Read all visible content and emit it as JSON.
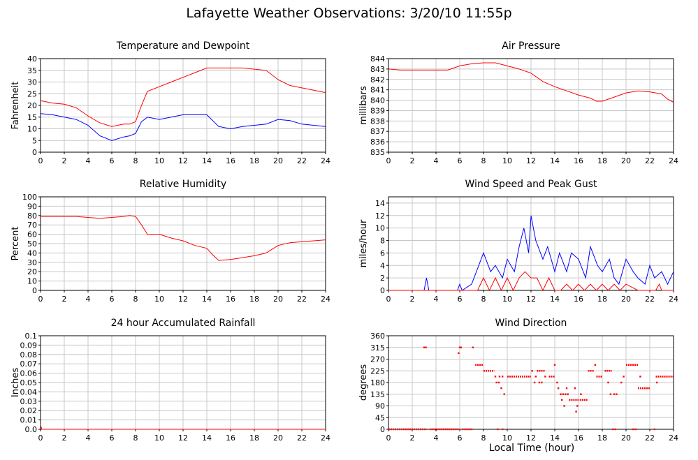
{
  "title": "Lafayette Weather Observations: 3/20/10 11:55p",
  "xlabel": "Local Time (hour)",
  "chart_data": [
    {
      "type": "line",
      "title": "Temperature and Dewpoint",
      "ylabel": "Fahrenheit",
      "xlim": [
        0,
        24
      ],
      "ylim": [
        0,
        40
      ],
      "xticks": [
        0,
        2,
        4,
        6,
        8,
        10,
        12,
        14,
        16,
        18,
        20,
        22,
        24
      ],
      "yticks": [
        0,
        5,
        10,
        15,
        20,
        25,
        30,
        35,
        40
      ],
      "grid": true,
      "series": [
        {
          "color": "#ff0000",
          "x": [
            0,
            1,
            2,
            3,
            4,
            5,
            6,
            7,
            7.5,
            8,
            8.5,
            9,
            10,
            11,
            12,
            13,
            14,
            15,
            16,
            17,
            18,
            19,
            20,
            21,
            22,
            23,
            24
          ],
          "y": [
            22,
            21,
            20.5,
            19,
            15.5,
            12.5,
            11,
            12,
            12,
            13,
            20,
            26,
            28,
            30,
            32,
            34,
            36,
            36,
            36,
            36,
            35.5,
            35,
            31,
            28.5,
            27.5,
            26.5,
            25.5
          ]
        },
        {
          "color": "#0000ff",
          "x": [
            0,
            1,
            2,
            3,
            4,
            5,
            6,
            7,
            7.5,
            8,
            8.5,
            9,
            10,
            11,
            12,
            13,
            14,
            15,
            16,
            17,
            18,
            19,
            20,
            21,
            22,
            23,
            24
          ],
          "y": [
            16.5,
            16,
            15,
            14,
            11.5,
            7,
            5,
            6.5,
            7,
            8,
            13,
            15,
            14,
            15,
            16,
            16,
            16,
            11,
            10,
            11,
            11.5,
            12,
            14,
            13.5,
            12,
            11.5,
            11
          ]
        }
      ]
    },
    {
      "type": "line",
      "title": "Air Pressure",
      "ylabel": "millibars",
      "xlim": [
        0,
        24
      ],
      "ylim": [
        835,
        844
      ],
      "xticks": [
        0,
        2,
        4,
        6,
        8,
        10,
        12,
        14,
        16,
        18,
        20,
        22,
        24
      ],
      "yticks": [
        835,
        836,
        837,
        838,
        839,
        840,
        841,
        842,
        843,
        844
      ],
      "grid": true,
      "series": [
        {
          "color": "#ff0000",
          "x": [
            0,
            1,
            2,
            3,
            4,
            5,
            6,
            7,
            8,
            9,
            10,
            11,
            12,
            13,
            14,
            15,
            16,
            17,
            17.5,
            18,
            19,
            20,
            21,
            22,
            23,
            23.5,
            24
          ],
          "y": [
            843,
            842.9,
            842.9,
            842.9,
            842.9,
            842.9,
            843.3,
            843.5,
            843.6,
            843.6,
            843.3,
            843,
            842.6,
            841.8,
            841.3,
            840.9,
            840.5,
            840.2,
            839.9,
            839.9,
            840.3,
            840.7,
            840.9,
            840.8,
            840.6,
            840.1,
            839.8
          ]
        }
      ]
    },
    {
      "type": "line",
      "title": "Relative Humidity",
      "ylabel": "Percent",
      "xlim": [
        0,
        24
      ],
      "ylim": [
        0,
        100
      ],
      "xticks": [
        0,
        2,
        4,
        6,
        8,
        10,
        12,
        14,
        16,
        18,
        20,
        22,
        24
      ],
      "yticks": [
        0,
        10,
        20,
        30,
        40,
        50,
        60,
        70,
        80,
        90,
        100
      ],
      "grid": true,
      "series": [
        {
          "color": "#ff0000",
          "x": [
            0,
            1,
            2,
            3,
            4,
            5,
            6,
            7,
            7.5,
            8,
            8.5,
            9,
            10,
            11,
            12,
            13,
            14,
            14.5,
            15,
            16,
            17,
            18,
            19,
            20,
            21,
            22,
            23,
            24
          ],
          "y": [
            79,
            79,
            79,
            79,
            78,
            77,
            78,
            79,
            80,
            79,
            70,
            60,
            60,
            56,
            53,
            48,
            45,
            38,
            32,
            33,
            35,
            37,
            40,
            48,
            51,
            52,
            53,
            54
          ]
        }
      ]
    },
    {
      "type": "line",
      "title": "Wind Speed and Peak Gust",
      "ylabel": "miles/hour",
      "xlim": [
        0,
        24
      ],
      "ylim": [
        0,
        15
      ],
      "xticks": [
        0,
        2,
        4,
        6,
        8,
        10,
        12,
        14,
        16,
        18,
        20,
        22,
        24
      ],
      "yticks": [
        0,
        2,
        4,
        6,
        8,
        10,
        12,
        14
      ],
      "grid": true,
      "series": [
        {
          "color": "#0000ff",
          "x": [
            0,
            3,
            3.2,
            3.4,
            5.8,
            6,
            6.2,
            7,
            7.4,
            8,
            8.6,
            9,
            9.6,
            10,
            10.6,
            11,
            11.4,
            11.8,
            12,
            12.4,
            13,
            13.4,
            14,
            14.4,
            15,
            15.4,
            16,
            16.6,
            17,
            17.6,
            18,
            18.6,
            19,
            19.4,
            20,
            20.6,
            21,
            21.6,
            22,
            22.4,
            23,
            23.5,
            24
          ],
          "y": [
            0,
            0,
            2,
            0,
            0,
            1,
            0,
            1,
            3,
            6,
            3,
            4,
            2,
            5,
            3,
            7,
            10,
            6,
            12,
            8,
            5,
            7,
            3,
            6,
            3,
            6,
            5,
            2,
            7,
            4,
            3,
            5,
            2,
            1,
            5,
            3,
            2,
            1,
            4,
            2,
            3,
            1,
            3
          ]
        },
        {
          "color": "#ff0000",
          "x": [
            0,
            7.5,
            8,
            8.5,
            9,
            9.5,
            10,
            10.5,
            11,
            11.5,
            12,
            12.5,
            13,
            13.5,
            14,
            14.5,
            15,
            15.5,
            16,
            16.5,
            17,
            17.5,
            18,
            18.5,
            19,
            19.5,
            20,
            21,
            22,
            22.5,
            22.8,
            23,
            24
          ],
          "y": [
            0,
            0,
            2,
            0,
            2,
            0,
            2,
            0,
            2,
            3,
            2,
            2,
            0,
            2,
            0,
            0,
            1,
            0,
            1,
            0,
            1,
            0,
            1,
            0,
            1,
            0,
            1,
            0,
            0,
            0,
            1,
            0,
            0
          ]
        }
      ]
    },
    {
      "type": "line",
      "title": "24 hour Accumulated Rainfall",
      "ylabel": "Inches",
      "xlim": [
        0,
        24
      ],
      "ylim": [
        0,
        0.1
      ],
      "xticks": [
        0,
        2,
        4,
        6,
        8,
        10,
        12,
        14,
        16,
        18,
        20,
        22,
        24
      ],
      "yticks": [
        "0.0",
        "0.01",
        "0.02",
        "0.03",
        "0.04",
        "0.05",
        "0.06",
        "0.07",
        "0.08",
        "0.09",
        "0.1"
      ],
      "grid": true,
      "series": [
        {
          "color": "#ff0000",
          "x": [
            0,
            0.1,
            24
          ],
          "y": [
            0.005,
            0,
            0
          ]
        }
      ]
    },
    {
      "type": "scatter",
      "title": "Wind Direction",
      "ylabel": "degrees",
      "xlim": [
        0,
        24
      ],
      "ylim": [
        0,
        360
      ],
      "xticks": [
        0,
        2,
        4,
        6,
        8,
        10,
        12,
        14,
        16,
        18,
        20,
        22,
        24
      ],
      "yticks": [
        0,
        45,
        90,
        135,
        180,
        225,
        270,
        315,
        360
      ],
      "grid": true,
      "series": [
        {
          "color": "#ff0000",
          "segments": [
            [
              0,
              3.2,
              0
            ],
            [
              3.5,
              6.0,
              0
            ],
            [
              6.2,
              7.1,
              0
            ],
            [
              7.3,
              8.0,
              248
            ],
            [
              8.0,
              8.9,
              225
            ],
            [
              10.0,
              12.0,
              203
            ],
            [
              12.5,
              13.2,
              225
            ],
            [
              13.5,
              14.0,
              203
            ],
            [
              15.2,
              16.0,
              113
            ],
            [
              16.1,
              16.8,
              113
            ],
            [
              16.8,
              17.3,
              225
            ],
            [
              17.5,
              18.0,
              203
            ],
            [
              18.2,
              18.8,
              225
            ],
            [
              20.0,
              21.0,
              248
            ],
            [
              21.0,
              22.0,
              158
            ],
            [
              22.5,
              24.0,
              203
            ]
          ],
          "points": [
            [
              3.0,
              315
            ],
            [
              3.15,
              315
            ],
            [
              5.9,
              293
            ],
            [
              6.0,
              315
            ],
            [
              6.1,
              315
            ],
            [
              7.1,
              315
            ],
            [
              9.0,
              203
            ],
            [
              9.1,
              180
            ],
            [
              9.3,
              180
            ],
            [
              9.35,
              203
            ],
            [
              9.5,
              158
            ],
            [
              9.6,
              203
            ],
            [
              9.75,
              135
            ],
            [
              9.2,
              0
            ],
            [
              9.6,
              0
            ],
            [
              12.1,
              225
            ],
            [
              12.3,
              180
            ],
            [
              12.4,
              203
            ],
            [
              12.7,
              180
            ],
            [
              12.9,
              180
            ],
            [
              13.2,
              203
            ],
            [
              14.0,
              248
            ],
            [
              14.2,
              180
            ],
            [
              14.3,
              158
            ],
            [
              14.5,
              135
            ],
            [
              14.6,
              113
            ],
            [
              14.7,
              135
            ],
            [
              14.8,
              90
            ],
            [
              14.9,
              135
            ],
            [
              15.0,
              158
            ],
            [
              15.1,
              135
            ],
            [
              15.7,
              158
            ],
            [
              15.8,
              68
            ],
            [
              15.9,
              90
            ],
            [
              16.2,
              135
            ],
            [
              17.4,
              248
            ],
            [
              18.5,
              180
            ],
            [
              18.7,
              135
            ],
            [
              18.9,
              0
            ],
            [
              19.0,
              135
            ],
            [
              19.1,
              0
            ],
            [
              19.2,
              135
            ],
            [
              19.6,
              180
            ],
            [
              19.8,
              203
            ],
            [
              20.6,
              0
            ],
            [
              20.8,
              0
            ],
            [
              21.2,
              203
            ],
            [
              22.4,
              0
            ],
            [
              22.6,
              180
            ]
          ]
        }
      ]
    }
  ]
}
